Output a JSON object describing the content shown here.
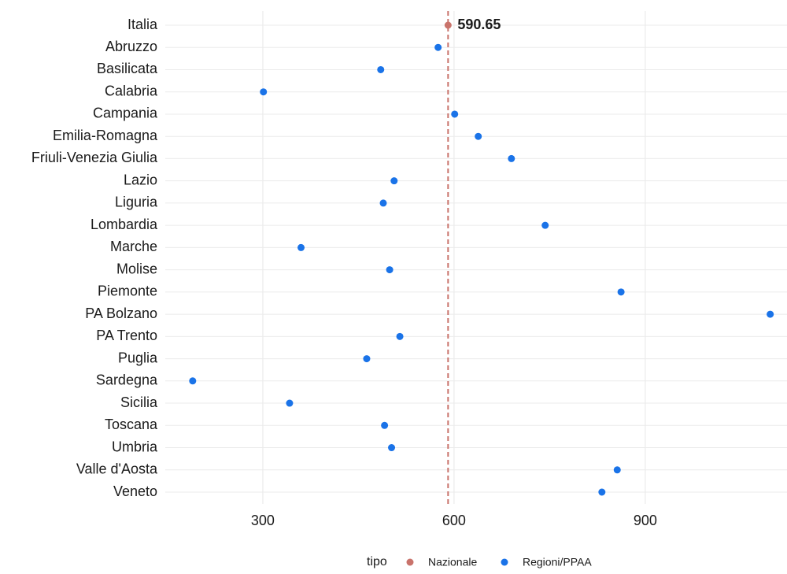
{
  "chart_data": {
    "type": "dot",
    "categories": [
      "Italia",
      "Abruzzo",
      "Basilicata",
      "Calabria",
      "Campania",
      "Emilia-Romagna",
      "Friuli-Venezia Giulia",
      "Lazio",
      "Liguria",
      "Lombardia",
      "Marche",
      "Molise",
      "Piemonte",
      "PA Bolzano",
      "PA Trento",
      "Puglia",
      "Sardegna",
      "Sicilia",
      "Toscana",
      "Umbria",
      "Valle d'Aosta",
      "Veneto"
    ],
    "series": [
      {
        "name": "Nazionale",
        "color": "#c9736b",
        "values": [
          590.65,
          null,
          null,
          null,
          null,
          null,
          null,
          null,
          null,
          null,
          null,
          null,
          null,
          null,
          null,
          null,
          null,
          null,
          null,
          null,
          null,
          null
        ]
      },
      {
        "name": "Regioni/PPAA",
        "color": "#1a73e8",
        "values": [
          null,
          575,
          485,
          301,
          601,
          638,
          690,
          506,
          489,
          743,
          360,
          499,
          862,
          1096,
          515,
          463,
          190,
          342,
          491,
          502,
          856,
          832
        ]
      }
    ],
    "legend_title": "tipo",
    "xlim": [
      147,
      1110
    ],
    "xticks": [
      300,
      600,
      900
    ],
    "grid": true
  }
}
